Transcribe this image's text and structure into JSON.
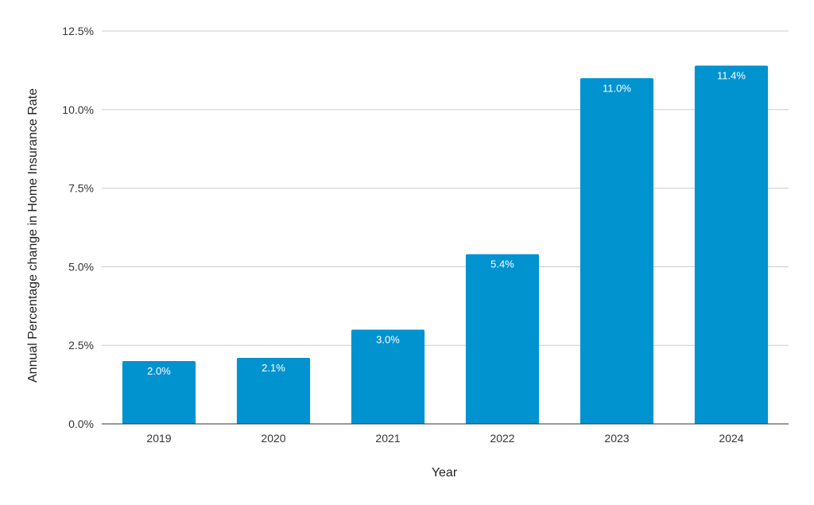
{
  "chart_data": {
    "type": "bar",
    "categories": [
      "2019",
      "2020",
      "2021",
      "2022",
      "2023",
      "2024"
    ],
    "values": [
      2.0,
      2.1,
      3.0,
      5.4,
      11.0,
      11.4
    ],
    "data_labels": [
      "2.0%",
      "2.1%",
      "3.0%",
      "5.4%",
      "11.0%",
      "11.4%"
    ],
    "xlabel": "Year",
    "ylabel": "Annual Percentage change in Home Insurance Rate",
    "ylim": [
      0,
      12.5
    ],
    "yticks": [
      0,
      2.5,
      5,
      7.5,
      10,
      12.5
    ],
    "ytick_labels": [
      "0.0%",
      "2.5%",
      "5.0%",
      "7.5%",
      "10.0%",
      "12.5%"
    ],
    "grid": true,
    "legend": "none",
    "bar_color": "#0093D0"
  }
}
